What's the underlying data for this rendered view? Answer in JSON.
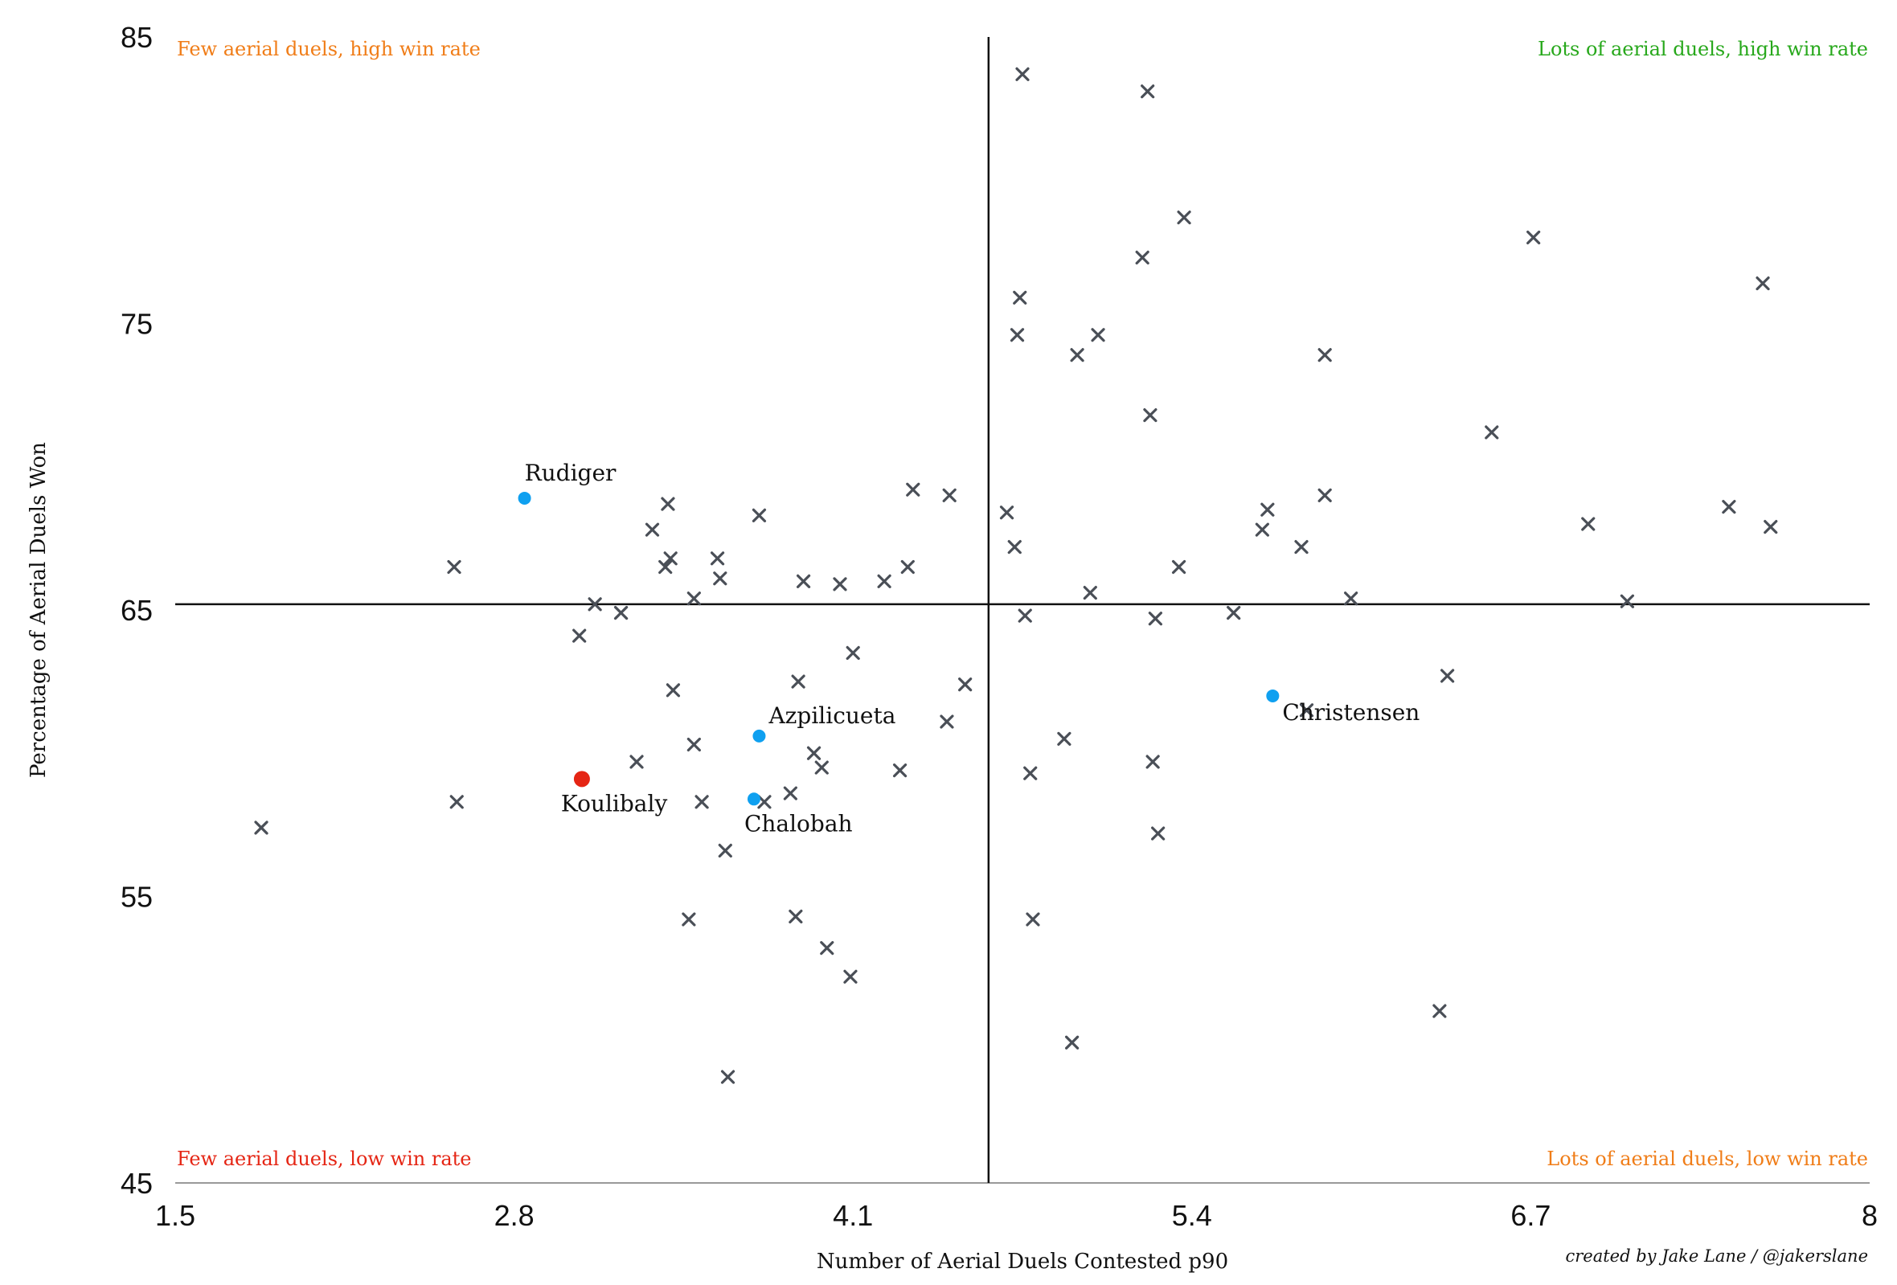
{
  "chart_data": {
    "type": "scatter",
    "title": "",
    "xlabel": "Number of Aerial Duels Contested p90",
    "ylabel": "Percentage of Aerial Duels Won",
    "xlim": [
      1.5,
      8
    ],
    "ylim": [
      45,
      85
    ],
    "x_ticks": [
      "1.5",
      "2.8",
      "4.1",
      "5.4",
      "6.7",
      "8"
    ],
    "y_ticks": [
      "85",
      "75",
      "65",
      "55",
      "45"
    ],
    "grid": false,
    "reference_lines": {
      "x": 4.62,
      "y": 65.2
    },
    "quadrant_labels": {
      "top_left": {
        "text": "Few aerial duels, high win rate",
        "color": "#f07d18"
      },
      "top_right": {
        "text": "Lots of aerial duels, high win rate",
        "color": "#27a81b"
      },
      "bottom_left": {
        "text": "Few aerial duels, low win rate",
        "color": "#e52514"
      },
      "bottom_right": {
        "text": "Lots of aerial duels, low win rate",
        "color": "#f07d18"
      }
    },
    "credit": "created by Jake Lane / @jakerslane",
    "highlighted": [
      {
        "name": "Rudiger",
        "x": 2.84,
        "y": 68.9,
        "color": "#0fa0f0"
      },
      {
        "name": "Azpilicueta",
        "x": 3.74,
        "y": 60.6,
        "color": "#0fa0f0"
      },
      {
        "name": "Chalobah",
        "x": 3.72,
        "y": 58.4,
        "color": "#0fa0f0"
      },
      {
        "name": "Christensen",
        "x": 5.71,
        "y": 62.0,
        "color": "#0fa0f0"
      },
      {
        "name": "Koulibaly",
        "x": 3.06,
        "y": 59.1,
        "color": "#e52514"
      }
    ],
    "others": [
      [
        1.83,
        57.4
      ],
      [
        2.57,
        66.5
      ],
      [
        2.58,
        58.3
      ],
      [
        3.05,
        64.1
      ],
      [
        3.11,
        65.2
      ],
      [
        3.21,
        64.9
      ],
      [
        3.27,
        59.7
      ],
      [
        3.33,
        67.8
      ],
      [
        3.38,
        66.5
      ],
      [
        3.39,
        68.7
      ],
      [
        3.4,
        66.8
      ],
      [
        3.41,
        62.2
      ],
      [
        3.47,
        54.2
      ],
      [
        3.49,
        65.4
      ],
      [
        3.49,
        60.3
      ],
      [
        3.52,
        58.3
      ],
      [
        3.58,
        66.8
      ],
      [
        3.59,
        66.1
      ],
      [
        3.61,
        56.6
      ],
      [
        3.62,
        48.7
      ],
      [
        3.74,
        68.3
      ],
      [
        3.76,
        58.3
      ],
      [
        3.86,
        58.6
      ],
      [
        3.88,
        54.3
      ],
      [
        3.89,
        62.5
      ],
      [
        3.91,
        66.0
      ],
      [
        3.95,
        60.0
      ],
      [
        3.98,
        59.5
      ],
      [
        4.0,
        53.2
      ],
      [
        4.05,
        65.9
      ],
      [
        4.09,
        52.2
      ],
      [
        4.1,
        63.5
      ],
      [
        4.22,
        66.0
      ],
      [
        4.28,
        59.4
      ],
      [
        4.31,
        66.5
      ],
      [
        4.33,
        69.2
      ],
      [
        4.46,
        61.1
      ],
      [
        4.47,
        69.0
      ],
      [
        4.53,
        62.4
      ],
      [
        4.69,
        68.4
      ],
      [
        4.72,
        67.2
      ],
      [
        4.73,
        74.6
      ],
      [
        4.74,
        75.9
      ],
      [
        4.75,
        83.7
      ],
      [
        4.76,
        64.8
      ],
      [
        4.78,
        59.3
      ],
      [
        4.79,
        54.2
      ],
      [
        4.91,
        60.5
      ],
      [
        4.94,
        49.9
      ],
      [
        4.96,
        73.9
      ],
      [
        5.01,
        65.6
      ],
      [
        5.04,
        74.6
      ],
      [
        5.21,
        77.3
      ],
      [
        5.24,
        71.8
      ],
      [
        5.25,
        59.7
      ],
      [
        5.26,
        64.7
      ],
      [
        5.27,
        57.2
      ],
      [
        5.23,
        83.1
      ],
      [
        5.35,
        66.5
      ],
      [
        5.37,
        78.7
      ],
      [
        5.56,
        64.9
      ],
      [
        5.67,
        67.8
      ],
      [
        5.69,
        68.5
      ],
      [
        5.82,
        67.2
      ],
      [
        5.84,
        61.5
      ],
      [
        5.91,
        73.9
      ],
      [
        5.91,
        69.0
      ],
      [
        6.01,
        65.4
      ],
      [
        6.35,
        51.0
      ],
      [
        6.38,
        62.7
      ],
      [
        6.55,
        71.2
      ],
      [
        6.71,
        78.0
      ],
      [
        6.92,
        68.0
      ],
      [
        7.07,
        65.3
      ],
      [
        7.46,
        68.6
      ],
      [
        7.59,
        76.4
      ],
      [
        7.62,
        67.9
      ]
    ]
  }
}
